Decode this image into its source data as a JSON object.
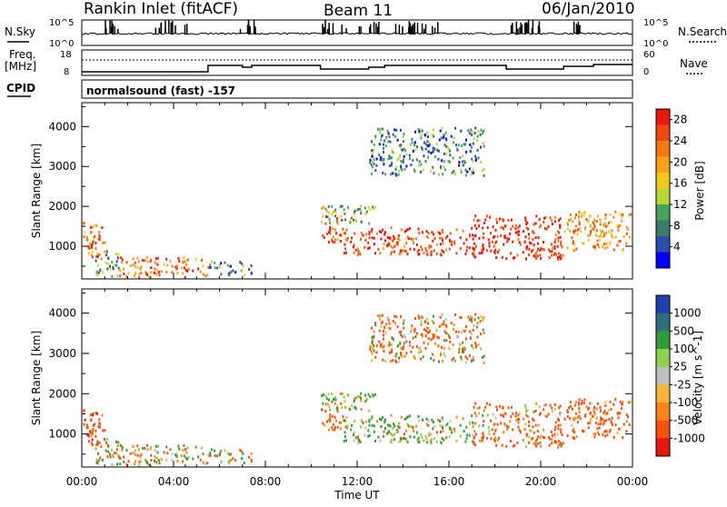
{
  "header": {
    "station": "Rankin Inlet (fitACF)",
    "beam": "Beam 11",
    "date": "06/Jan/2010"
  },
  "top_panels": {
    "nsky_label": "N.Sky",
    "nsky_ticks": [
      "10^5",
      "10^0"
    ],
    "nsearch_label": "N.Search",
    "nsearch_ticks": [
      "10^5",
      "10^0"
    ],
    "freq_label_1": "Freq.",
    "freq_label_2": "[MHz]",
    "freq_ticks": [
      "18",
      "8"
    ],
    "nave_label": "Nave",
    "nave_ticks": [
      "60",
      "0"
    ],
    "cpid_label": "CPID",
    "cpid_value": "normalsound (fast) -157"
  },
  "colors": {
    "power": [
      "#0000ff",
      "#2b4fa8",
      "#3d7a6a",
      "#45a35c",
      "#b8d63a",
      "#f2c81f",
      "#f7a21a",
      "#f47a13",
      "#ee4a10",
      "#e8180c"
    ],
    "velocity": [
      "#e8180c",
      "#f4500f",
      "#f7861a",
      "#f8b43a",
      "#bfbfbf",
      "#8fd14f",
      "#2f9c3a",
      "#2d6f7e",
      "#1f3fb0"
    ]
  },
  "chart_data": [
    {
      "type": "heatmap",
      "name": "power-panel",
      "xlabel": "",
      "ylabel": "Slant Range [km]",
      "x_ticks": [
        "00:00",
        "04:00",
        "08:00",
        "12:00",
        "16:00",
        "20:00",
        "00:00"
      ],
      "x_range_hours": [
        0,
        24
      ],
      "y_ticks": [
        1000,
        2000,
        3000,
        4000
      ],
      "ylim": [
        180,
        4600
      ],
      "colorbar_label": "Power [dB]",
      "colorbar_ticks": [
        "4",
        "8",
        "12",
        "16",
        "20",
        "24",
        "28"
      ],
      "colorbar_range": [
        0,
        30
      ],
      "regions": [
        {
          "t0": 0.0,
          "t1": 1.0,
          "r0": 700,
          "r1": 1700,
          "level": 22
        },
        {
          "t0": 0.5,
          "t1": 1.6,
          "r0": 250,
          "r1": 900,
          "level": 10
        },
        {
          "t0": 1.6,
          "t1": 5.5,
          "r0": 250,
          "r1": 750,
          "level": 24
        },
        {
          "t0": 5.5,
          "t1": 7.5,
          "r0": 300,
          "r1": 650,
          "level": 9
        },
        {
          "t0": 10.4,
          "t1": 11.4,
          "r0": 1100,
          "r1": 1800,
          "level": 24
        },
        {
          "t0": 10.4,
          "t1": 12.8,
          "r0": 1600,
          "r1": 2050,
          "level": 12
        },
        {
          "t0": 11.4,
          "t1": 17.0,
          "r0": 800,
          "r1": 1500,
          "level": 27
        },
        {
          "t0": 17.0,
          "t1": 21.0,
          "r0": 700,
          "r1": 1800,
          "level": 29
        },
        {
          "t0": 21.0,
          "t1": 24.0,
          "r0": 900,
          "r1": 1900,
          "level": 20
        },
        {
          "t0": 12.5,
          "t1": 17.5,
          "r0": 2800,
          "r1": 4000,
          "level": 8
        }
      ]
    },
    {
      "type": "heatmap",
      "name": "velocity-panel",
      "xlabel": "Time UT",
      "ylabel": "Slant Range [km]",
      "x_ticks": [
        "00:00",
        "04:00",
        "08:00",
        "12:00",
        "16:00",
        "20:00",
        "00:00"
      ],
      "x_range_hours": [
        0,
        24
      ],
      "y_ticks": [
        1000,
        2000,
        3000,
        4000
      ],
      "ylim": [
        180,
        4600
      ],
      "colorbar_label": "Velocity [m s^-1]",
      "colorbar_ticks": [
        "1000",
        "500",
        "100",
        "25",
        "-25",
        "-100",
        "-500",
        "-1000"
      ],
      "colorbar_range": [
        -1000,
        1000
      ],
      "regions": [
        {
          "t0": 0.0,
          "t1": 1.0,
          "r0": 700,
          "r1": 1700,
          "level": -300
        },
        {
          "t0": 0.5,
          "t1": 1.6,
          "r0": 250,
          "r1": 900,
          "level": 80
        },
        {
          "t0": 1.6,
          "t1": 5.5,
          "r0": 250,
          "r1": 750,
          "level": 40
        },
        {
          "t0": 5.5,
          "t1": 7.5,
          "r0": 300,
          "r1": 650,
          "level": 60
        },
        {
          "t0": 10.4,
          "t1": 11.4,
          "r0": 1100,
          "r1": 1800,
          "level": -250
        },
        {
          "t0": 10.4,
          "t1": 12.8,
          "r0": 1600,
          "r1": 2050,
          "level": 150
        },
        {
          "t0": 11.4,
          "t1": 17.0,
          "r0": 800,
          "r1": 1500,
          "level": 120
        },
        {
          "t0": 17.0,
          "t1": 21.0,
          "r0": 700,
          "r1": 1800,
          "level": -150
        },
        {
          "t0": 21.0,
          "t1": 24.0,
          "r0": 900,
          "r1": 1900,
          "level": -250
        },
        {
          "t0": 12.5,
          "t1": 17.5,
          "r0": 2800,
          "r1": 4000,
          "level": -120
        }
      ]
    }
  ]
}
